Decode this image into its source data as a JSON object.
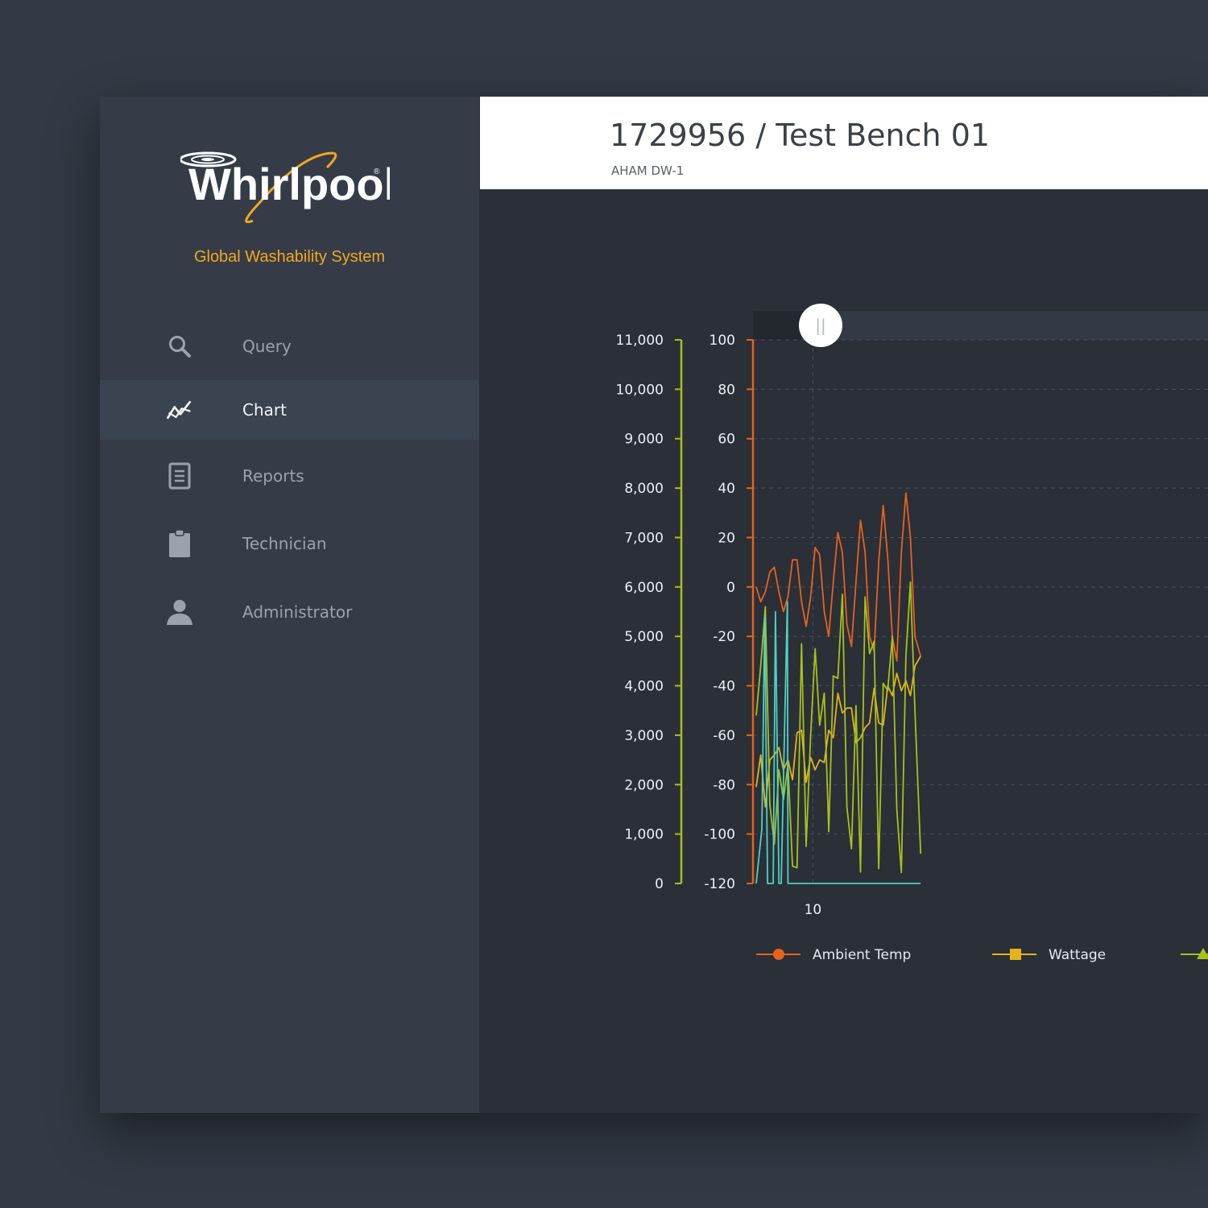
{
  "brand": {
    "logo_text": "Whirlpool",
    "tagline": "Global Washability System",
    "tagline_color": "#f2a81d"
  },
  "sidebar": {
    "items": [
      {
        "label": "Query",
        "icon": "search-icon",
        "active": false
      },
      {
        "label": "Chart",
        "icon": "chart-line-icon",
        "active": true
      },
      {
        "label": "Reports",
        "icon": "document-icon",
        "active": false
      },
      {
        "label": "Technician",
        "icon": "clipboard-icon",
        "active": false
      },
      {
        "label": "Administrator",
        "icon": "user-icon",
        "active": false
      }
    ]
  },
  "header": {
    "title": "1729956 / Test Bench 01",
    "subtitle": "AHAM DW-1"
  },
  "colors": {
    "ambient": "#e8621a",
    "wattage": "#e3b31a",
    "green": "#a6c21a",
    "cyan": "#4fd1c1",
    "left_axis": "#a6c21a",
    "right_axis": "#e8621a"
  },
  "chart_data": {
    "type": "line",
    "y_left": {
      "ticks": [
        "11,000",
        "10,000",
        "9,000",
        "8,000",
        "7,000",
        "6,000",
        "5,000",
        "4,000",
        "3,000",
        "2,000",
        "1,000",
        "0"
      ],
      "range": [
        0,
        11000
      ]
    },
    "y_right": {
      "ticks": [
        "100",
        "80",
        "60",
        "40",
        "20",
        "0",
        "-20",
        "-40",
        "-60",
        "-80",
        "-100",
        "-120"
      ],
      "range": [
        -120,
        100
      ]
    },
    "x": {
      "ticks": [
        "10"
      ],
      "range": [
        0,
        29
      ]
    },
    "grid": true,
    "range_slider": {
      "handle": "||"
    },
    "legend": [
      {
        "label": "Ambient Temp",
        "marker": "circle",
        "color": "#e8621a"
      },
      {
        "label": "Wattage",
        "marker": "square",
        "color": "#e3b31a"
      },
      {
        "label": "",
        "marker": "triangle",
        "color": "#a6c21a"
      }
    ],
    "series": [
      {
        "name": "Ambient Temp",
        "axis": "right",
        "color": "#e8621a",
        "points": [
          [
            0,
            0
          ],
          [
            0.8,
            -6
          ],
          [
            1.6,
            -2
          ],
          [
            2.4,
            6
          ],
          [
            3.2,
            8
          ],
          [
            4,
            -2
          ],
          [
            4.8,
            -10
          ],
          [
            5.6,
            -4
          ],
          [
            6.4,
            11
          ],
          [
            7.2,
            11
          ],
          [
            8,
            -6
          ],
          [
            8.8,
            -16
          ],
          [
            9.6,
            -4
          ],
          [
            10.4,
            16
          ],
          [
            11.2,
            13
          ],
          [
            12,
            -10
          ],
          [
            12.8,
            -20
          ],
          [
            13.6,
            2
          ],
          [
            14.4,
            22
          ],
          [
            15.2,
            14
          ],
          [
            16,
            -15
          ],
          [
            16.8,
            -24
          ],
          [
            17.6,
            2
          ],
          [
            18.4,
            27
          ],
          [
            19.2,
            14
          ],
          [
            20,
            -20
          ],
          [
            20.8,
            -26
          ],
          [
            21.6,
            10
          ],
          [
            22.4,
            33
          ],
          [
            23.2,
            12
          ],
          [
            24,
            -20
          ],
          [
            24.8,
            -30
          ],
          [
            25.6,
            14
          ],
          [
            26.4,
            38
          ],
          [
            27.2,
            20
          ],
          [
            28,
            -20
          ],
          [
            29,
            -28
          ]
        ]
      },
      {
        "name": "Wattage",
        "axis": "left",
        "color": "#e3b31a",
        "points": [
          [
            0,
            1950
          ],
          [
            0.8,
            2600
          ],
          [
            1.6,
            1550
          ],
          [
            2.4,
            2500
          ],
          [
            3.2,
            2600
          ],
          [
            4,
            2750
          ],
          [
            4.8,
            2300
          ],
          [
            5.6,
            2500
          ],
          [
            6.4,
            2100
          ],
          [
            7.2,
            3050
          ],
          [
            8,
            3100
          ],
          [
            8.8,
            2050
          ],
          [
            9.6,
            2550
          ],
          [
            10.4,
            2300
          ],
          [
            11.2,
            2500
          ],
          [
            12,
            2450
          ],
          [
            12.8,
            3100
          ],
          [
            13.6,
            2950
          ],
          [
            14.4,
            3850
          ],
          [
            15.2,
            3450
          ],
          [
            16,
            3550
          ],
          [
            16.8,
            3550
          ],
          [
            17.6,
            2850
          ],
          [
            18.4,
            2950
          ],
          [
            19.2,
            3150
          ],
          [
            20,
            3250
          ],
          [
            20.8,
            3950
          ],
          [
            21.6,
            3250
          ],
          [
            22.4,
            3200
          ],
          [
            23.2,
            4000
          ],
          [
            24,
            3800
          ],
          [
            24.8,
            4250
          ],
          [
            25.6,
            3900
          ],
          [
            26.4,
            4100
          ],
          [
            27.2,
            3800
          ],
          [
            28,
            4400
          ],
          [
            29,
            4600
          ]
        ]
      },
      {
        "name": "",
        "axis": "left",
        "color": "#a6c21a",
        "points": [
          [
            0,
            3400
          ],
          [
            0.8,
            4400
          ],
          [
            1.6,
            5600
          ],
          [
            2.4,
            1600
          ],
          [
            3.2,
            800
          ],
          [
            4,
            2300
          ],
          [
            4.8,
            1700
          ],
          [
            5.6,
            2400
          ],
          [
            6.4,
            350
          ],
          [
            7.2,
            320
          ],
          [
            8,
            4850
          ],
          [
            8.8,
            750
          ],
          [
            9.6,
            3000
          ],
          [
            10.4,
            4750
          ],
          [
            11.2,
            3200
          ],
          [
            12,
            3850
          ],
          [
            12.8,
            1050
          ],
          [
            13.6,
            4200
          ],
          [
            14.4,
            4150
          ],
          [
            15.2,
            5850
          ],
          [
            16,
            1550
          ],
          [
            16.8,
            700
          ],
          [
            17.6,
            3600
          ],
          [
            18.4,
            230
          ],
          [
            19.2,
            5800
          ],
          [
            20,
            4650
          ],
          [
            20.8,
            4900
          ],
          [
            21.6,
            300
          ],
          [
            22.4,
            4050
          ],
          [
            23.2,
            3900
          ],
          [
            24,
            5000
          ],
          [
            24.8,
            1500
          ],
          [
            25.6,
            220
          ],
          [
            26.4,
            4600
          ],
          [
            27.2,
            6100
          ],
          [
            28,
            3500
          ],
          [
            29,
            600
          ]
        ]
      },
      {
        "name": "",
        "axis": "left",
        "color": "#4fd1c1",
        "points": [
          [
            0,
            0
          ],
          [
            1,
            1100
          ],
          [
            1.5,
            5400
          ],
          [
            2,
            0
          ],
          [
            3,
            0
          ],
          [
            3.4,
            5500
          ],
          [
            4,
            0
          ],
          [
            4.4,
            0
          ],
          [
            5.5,
            5700
          ],
          [
            5.6,
            0
          ],
          [
            29,
            0
          ]
        ]
      }
    ]
  }
}
